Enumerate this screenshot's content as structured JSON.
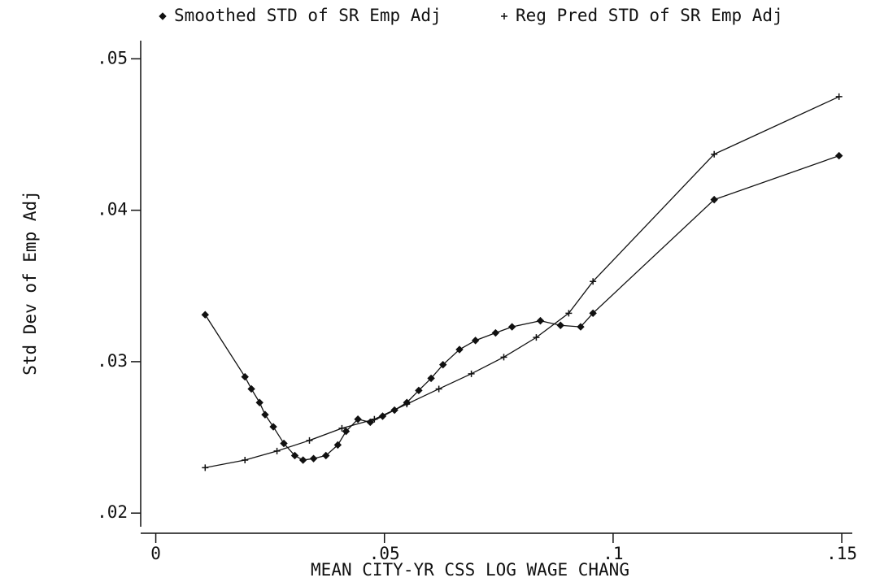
{
  "chart_data": {
    "type": "line",
    "x_label": "MEAN CITY-YR CSS LOG WAGE CHANG",
    "y_label": "Std Dev of Emp Adj",
    "xlim": [
      -0.0033,
      0.1523
    ],
    "ylim": [
      0.0191,
      0.0512
    ],
    "xticks": [
      0,
      {
        "value": 0.05,
        "label": ".05"
      },
      {
        "value": 0.1,
        "label": ".1"
      },
      {
        "value": 0.15,
        "label": ".15"
      }
    ],
    "yticks": [
      {
        "value": 0.02,
        "label": ".02"
      },
      {
        "value": 0.03,
        "label": ".03"
      },
      {
        "value": 0.04,
        "label": ".04"
      },
      {
        "value": 0.05,
        "label": ".05"
      }
    ],
    "series": [
      {
        "name": "Smoothed STD of SR Emp Adj",
        "color": "#111111",
        "marker": "diamond",
        "x": [
          0.0108,
          0.0195,
          0.0209,
          0.0227,
          0.0239,
          0.0257,
          0.028,
          0.0304,
          0.0322,
          0.0345,
          0.0372,
          0.0398,
          0.0416,
          0.0442,
          0.0469,
          0.0496,
          0.0522,
          0.0549,
          0.0575,
          0.0602,
          0.0628,
          0.0664,
          0.0699,
          0.0743,
          0.0779,
          0.0841,
          0.0885,
          0.0929,
          0.0956,
          0.1221,
          0.1494
        ],
        "values": [
          0.0331,
          0.029,
          0.0282,
          0.0273,
          0.0265,
          0.0257,
          0.0246,
          0.0238,
          0.0235,
          0.0236,
          0.0238,
          0.0245,
          0.0254,
          0.0262,
          0.026,
          0.0264,
          0.0268,
          0.0273,
          0.0281,
          0.0289,
          0.0298,
          0.0308,
          0.0314,
          0.0319,
          0.0323,
          0.0327,
          0.0324,
          0.0323,
          0.0332,
          0.0407,
          0.0436
        ]
      },
      {
        "name": "Reg Pred STD of SR Emp Adj",
        "color": "#111111",
        "marker": "plus",
        "x": [
          0.0108,
          0.0195,
          0.0265,
          0.0336,
          0.0407,
          0.0478,
          0.0549,
          0.0619,
          0.069,
          0.0761,
          0.0832,
          0.0903,
          0.0956,
          0.1221,
          0.1494
        ],
        "values": [
          0.023,
          0.0235,
          0.0241,
          0.0248,
          0.0256,
          0.0262,
          0.0272,
          0.0282,
          0.0292,
          0.0303,
          0.0316,
          0.0332,
          0.0353,
          0.0437,
          0.0475
        ]
      }
    ]
  }
}
